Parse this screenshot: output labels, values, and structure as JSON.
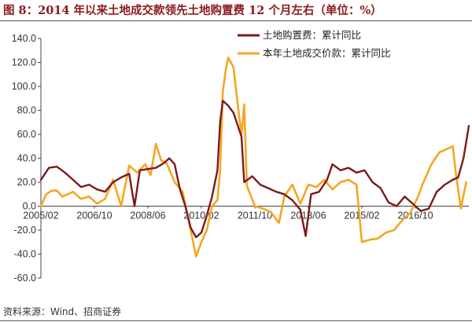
{
  "figure": {
    "title": "图 8：2014 年以来土地成交款领先土地购置费 12 个月左右（单位：%）",
    "source": "资料来源：Wind、招商证券"
  },
  "chart_data": {
    "type": "line",
    "ylim": [
      -60,
      140
    ],
    "yticks": [
      140,
      120,
      100,
      80,
      60,
      40,
      20,
      0,
      -20,
      -40,
      -60
    ],
    "ytick_labels": [
      "140.0",
      "120.0",
      "100.0",
      "80.0",
      "60.0",
      "40.0",
      "20.0",
      "0.0",
      "-20.0",
      "-40.0",
      "-60.0"
    ],
    "xtick_labels": [
      "2005/02",
      "2006/10",
      "2008/06",
      "2010/02",
      "2011/10",
      "2013/06",
      "2015/02",
      "2016/10"
    ],
    "grid": false,
    "legend_position": "top-right",
    "colors": {
      "land_purchase": "#7b1a1a",
      "land_transaction": "#f5a623",
      "axis": "#444444"
    },
    "series": [
      {
        "name": "土地购置费：累计同比",
        "color": "#7b1a1a",
        "points": [
          [
            "2005/02",
            22
          ],
          [
            "2005/05",
            32
          ],
          [
            "2005/08",
            33
          ],
          [
            "2005/11",
            28
          ],
          [
            "2006/02",
            22
          ],
          [
            "2006/05",
            16
          ],
          [
            "2006/08",
            18
          ],
          [
            "2006/11",
            14
          ],
          [
            "2007/02",
            12
          ],
          [
            "2007/05",
            20
          ],
          [
            "2007/08",
            24
          ],
          [
            "2007/11",
            27
          ],
          [
            "2008/01",
            0
          ],
          [
            "2008/03",
            30
          ],
          [
            "2008/06",
            31
          ],
          [
            "2008/09",
            32
          ],
          [
            "2008/12",
            36
          ],
          [
            "2009/02",
            40
          ],
          [
            "2009/04",
            35
          ],
          [
            "2009/06",
            14
          ],
          [
            "2009/08",
            0
          ],
          [
            "2009/10",
            -18
          ],
          [
            "2009/12",
            -26
          ],
          [
            "2010/02",
            -22
          ],
          [
            "2010/04",
            -8
          ],
          [
            "2010/06",
            8
          ],
          [
            "2010/08",
            30
          ],
          [
            "2010/09",
            70
          ],
          [
            "2010/10",
            88
          ],
          [
            "2010/12",
            84
          ],
          [
            "2011/02",
            78
          ],
          [
            "2011/05",
            58
          ],
          [
            "2011/06",
            20
          ],
          [
            "2011/09",
            25
          ],
          [
            "2011/12",
            18
          ],
          [
            "2012/03",
            15
          ],
          [
            "2012/06",
            12
          ],
          [
            "2012/09",
            10
          ],
          [
            "2012/12",
            5
          ],
          [
            "2013/03",
            -3
          ],
          [
            "2013/05",
            -25
          ],
          [
            "2013/07",
            10
          ],
          [
            "2013/10",
            12
          ],
          [
            "2014/01",
            22
          ],
          [
            "2014/03",
            35
          ],
          [
            "2014/06",
            30
          ],
          [
            "2014/09",
            32
          ],
          [
            "2014/12",
            28
          ],
          [
            "2015/03",
            30
          ],
          [
            "2015/06",
            20
          ],
          [
            "2015/09",
            15
          ],
          [
            "2015/12",
            3
          ],
          [
            "2016/03",
            0
          ],
          [
            "2016/06",
            8
          ],
          [
            "2016/09",
            2
          ],
          [
            "2016/12",
            -4
          ],
          [
            "2017/03",
            -2
          ],
          [
            "2017/06",
            12
          ],
          [
            "2017/09",
            18
          ],
          [
            "2017/12",
            22
          ],
          [
            "2018/02",
            24
          ],
          [
            "2018/04",
            40
          ],
          [
            "2018/06",
            67
          ]
        ]
      },
      {
        "name": "本年土地成交价款：累计同比",
        "color": "#f5a623",
        "points": [
          [
            "2005/02",
            0
          ],
          [
            "2005/04",
            10
          ],
          [
            "2005/06",
            13
          ],
          [
            "2005/08",
            13
          ],
          [
            "2005/10",
            8
          ],
          [
            "2005/12",
            10
          ],
          [
            "2006/02",
            12
          ],
          [
            "2006/05",
            6
          ],
          [
            "2006/08",
            8
          ],
          [
            "2006/11",
            2
          ],
          [
            "2007/02",
            6
          ],
          [
            "2007/05",
            22
          ],
          [
            "2007/08",
            0
          ],
          [
            "2007/11",
            34
          ],
          [
            "2008/02",
            28
          ],
          [
            "2008/05",
            35
          ],
          [
            "2008/07",
            26
          ],
          [
            "2008/09",
            52
          ],
          [
            "2008/11",
            38
          ],
          [
            "2009/01",
            36
          ],
          [
            "2009/04",
            20
          ],
          [
            "2009/07",
            12
          ],
          [
            "2009/10",
            -20
          ],
          [
            "2009/12",
            -42
          ],
          [
            "2010/02",
            -30
          ],
          [
            "2010/04",
            -20
          ],
          [
            "2010/06",
            0
          ],
          [
            "2010/08",
            5
          ],
          [
            "2010/09",
            30
          ],
          [
            "2010/10",
            95
          ],
          [
            "2010/11",
            112
          ],
          [
            "2010/12",
            124
          ],
          [
            "2011/02",
            116
          ],
          [
            "2011/04",
            77
          ],
          [
            "2011/05",
            60
          ],
          [
            "2011/06",
            85
          ],
          [
            "2011/07",
            17
          ],
          [
            "2011/10",
            0
          ],
          [
            "2012/01",
            -2
          ],
          [
            "2012/04",
            -5
          ],
          [
            "2012/07",
            -14
          ],
          [
            "2012/09",
            8
          ],
          [
            "2012/12",
            18
          ],
          [
            "2013/03",
            2
          ],
          [
            "2013/06",
            18
          ],
          [
            "2013/09",
            16
          ],
          [
            "2013/12",
            22
          ],
          [
            "2014/03",
            14
          ],
          [
            "2014/06",
            20
          ],
          [
            "2014/09",
            22
          ],
          [
            "2014/12",
            18
          ],
          [
            "2015/02",
            -30
          ],
          [
            "2015/05",
            -28
          ],
          [
            "2015/08",
            -27
          ],
          [
            "2015/11",
            -22
          ],
          [
            "2016/02",
            -20
          ],
          [
            "2016/05",
            -12
          ],
          [
            "2016/08",
            -6
          ],
          [
            "2016/11",
            8
          ],
          [
            "2017/01",
            20
          ],
          [
            "2017/04",
            35
          ],
          [
            "2017/07",
            45
          ],
          [
            "2017/10",
            48
          ],
          [
            "2017/12",
            50
          ],
          [
            "2018/01",
            30
          ],
          [
            "2018/03",
            -2
          ],
          [
            "2018/05",
            20
          ]
        ]
      }
    ]
  }
}
